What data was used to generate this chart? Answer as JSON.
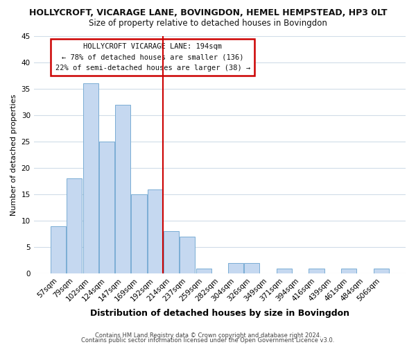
{
  "title1": "HOLLYCROFT, VICARAGE LANE, BOVINGDON, HEMEL HEMPSTEAD, HP3 0LT",
  "title2": "Size of property relative to detached houses in Bovingdon",
  "xlabel": "Distribution of detached houses by size in Bovingdon",
  "ylabel": "Number of detached properties",
  "categories": [
    "57sqm",
    "79sqm",
    "102sqm",
    "124sqm",
    "147sqm",
    "169sqm",
    "192sqm",
    "214sqm",
    "237sqm",
    "259sqm",
    "282sqm",
    "304sqm",
    "326sqm",
    "349sqm",
    "371sqm",
    "394sqm",
    "416sqm",
    "439sqm",
    "461sqm",
    "484sqm",
    "506sqm"
  ],
  "values": [
    9,
    18,
    36,
    25,
    32,
    15,
    16,
    8,
    7,
    1,
    0,
    2,
    2,
    0,
    1,
    0,
    1,
    0,
    1,
    0,
    1
  ],
  "bar_color": "#c5d8f0",
  "bar_edge_color": "#7aadd4",
  "ylim": [
    0,
    45
  ],
  "yticks": [
    0,
    5,
    10,
    15,
    20,
    25,
    30,
    35,
    40,
    45
  ],
  "annotation_title": "HOLLYCROFT VICARAGE LANE: 194sqm",
  "annotation_line1": "← 78% of detached houses are smaller (136)",
  "annotation_line2": "22% of semi-detached houses are larger (38) →",
  "marker_index": 6,
  "footer1": "Contains HM Land Registry data © Crown copyright and database right 2024.",
  "footer2": "Contains public sector information licensed under the Open Government Licence v3.0.",
  "background_color": "#ffffff",
  "grid_color": "#d0dce8",
  "vline_color": "#cc0000",
  "ann_box_color": "#cc0000",
  "title1_fontsize": 9,
  "title2_fontsize": 8.5,
  "ylabel_fontsize": 8,
  "xlabel_fontsize": 9,
  "footer_fontsize": 6,
  "tick_fontsize": 7.5
}
